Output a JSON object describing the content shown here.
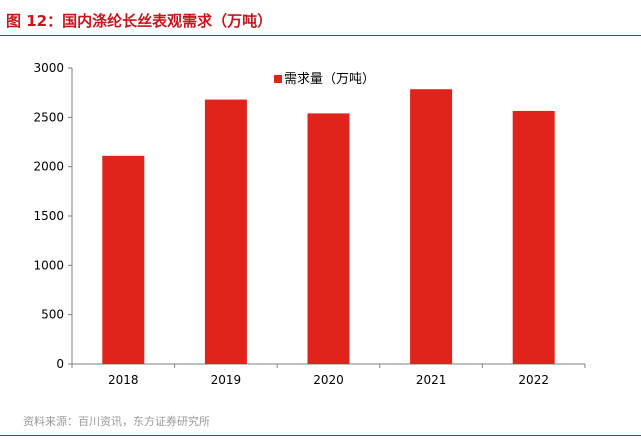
{
  "header": {
    "title": "图 12：国内涤纶长丝表观需求（万吨）"
  },
  "footer": {
    "source": "资料来源：百川资讯，东方证券研究所"
  },
  "colors": {
    "accent": "#c8161d",
    "bar": "#e0241b",
    "axis": "#7f7f7f",
    "text": "#000000",
    "source": "#9a9a9a"
  },
  "chart_data": {
    "type": "bar",
    "categories": [
      "2018",
      "2019",
      "2020",
      "2021",
      "2022"
    ],
    "series": [
      {
        "name": "需求量（万吨）",
        "values": [
          2110,
          2680,
          2540,
          2785,
          2565
        ]
      }
    ],
    "ylim": [
      0,
      3000
    ],
    "yticks": [
      "0",
      "500",
      "1000",
      "1500",
      "2000",
      "2500",
      "3000"
    ],
    "grid": false,
    "legend": "top-center"
  }
}
